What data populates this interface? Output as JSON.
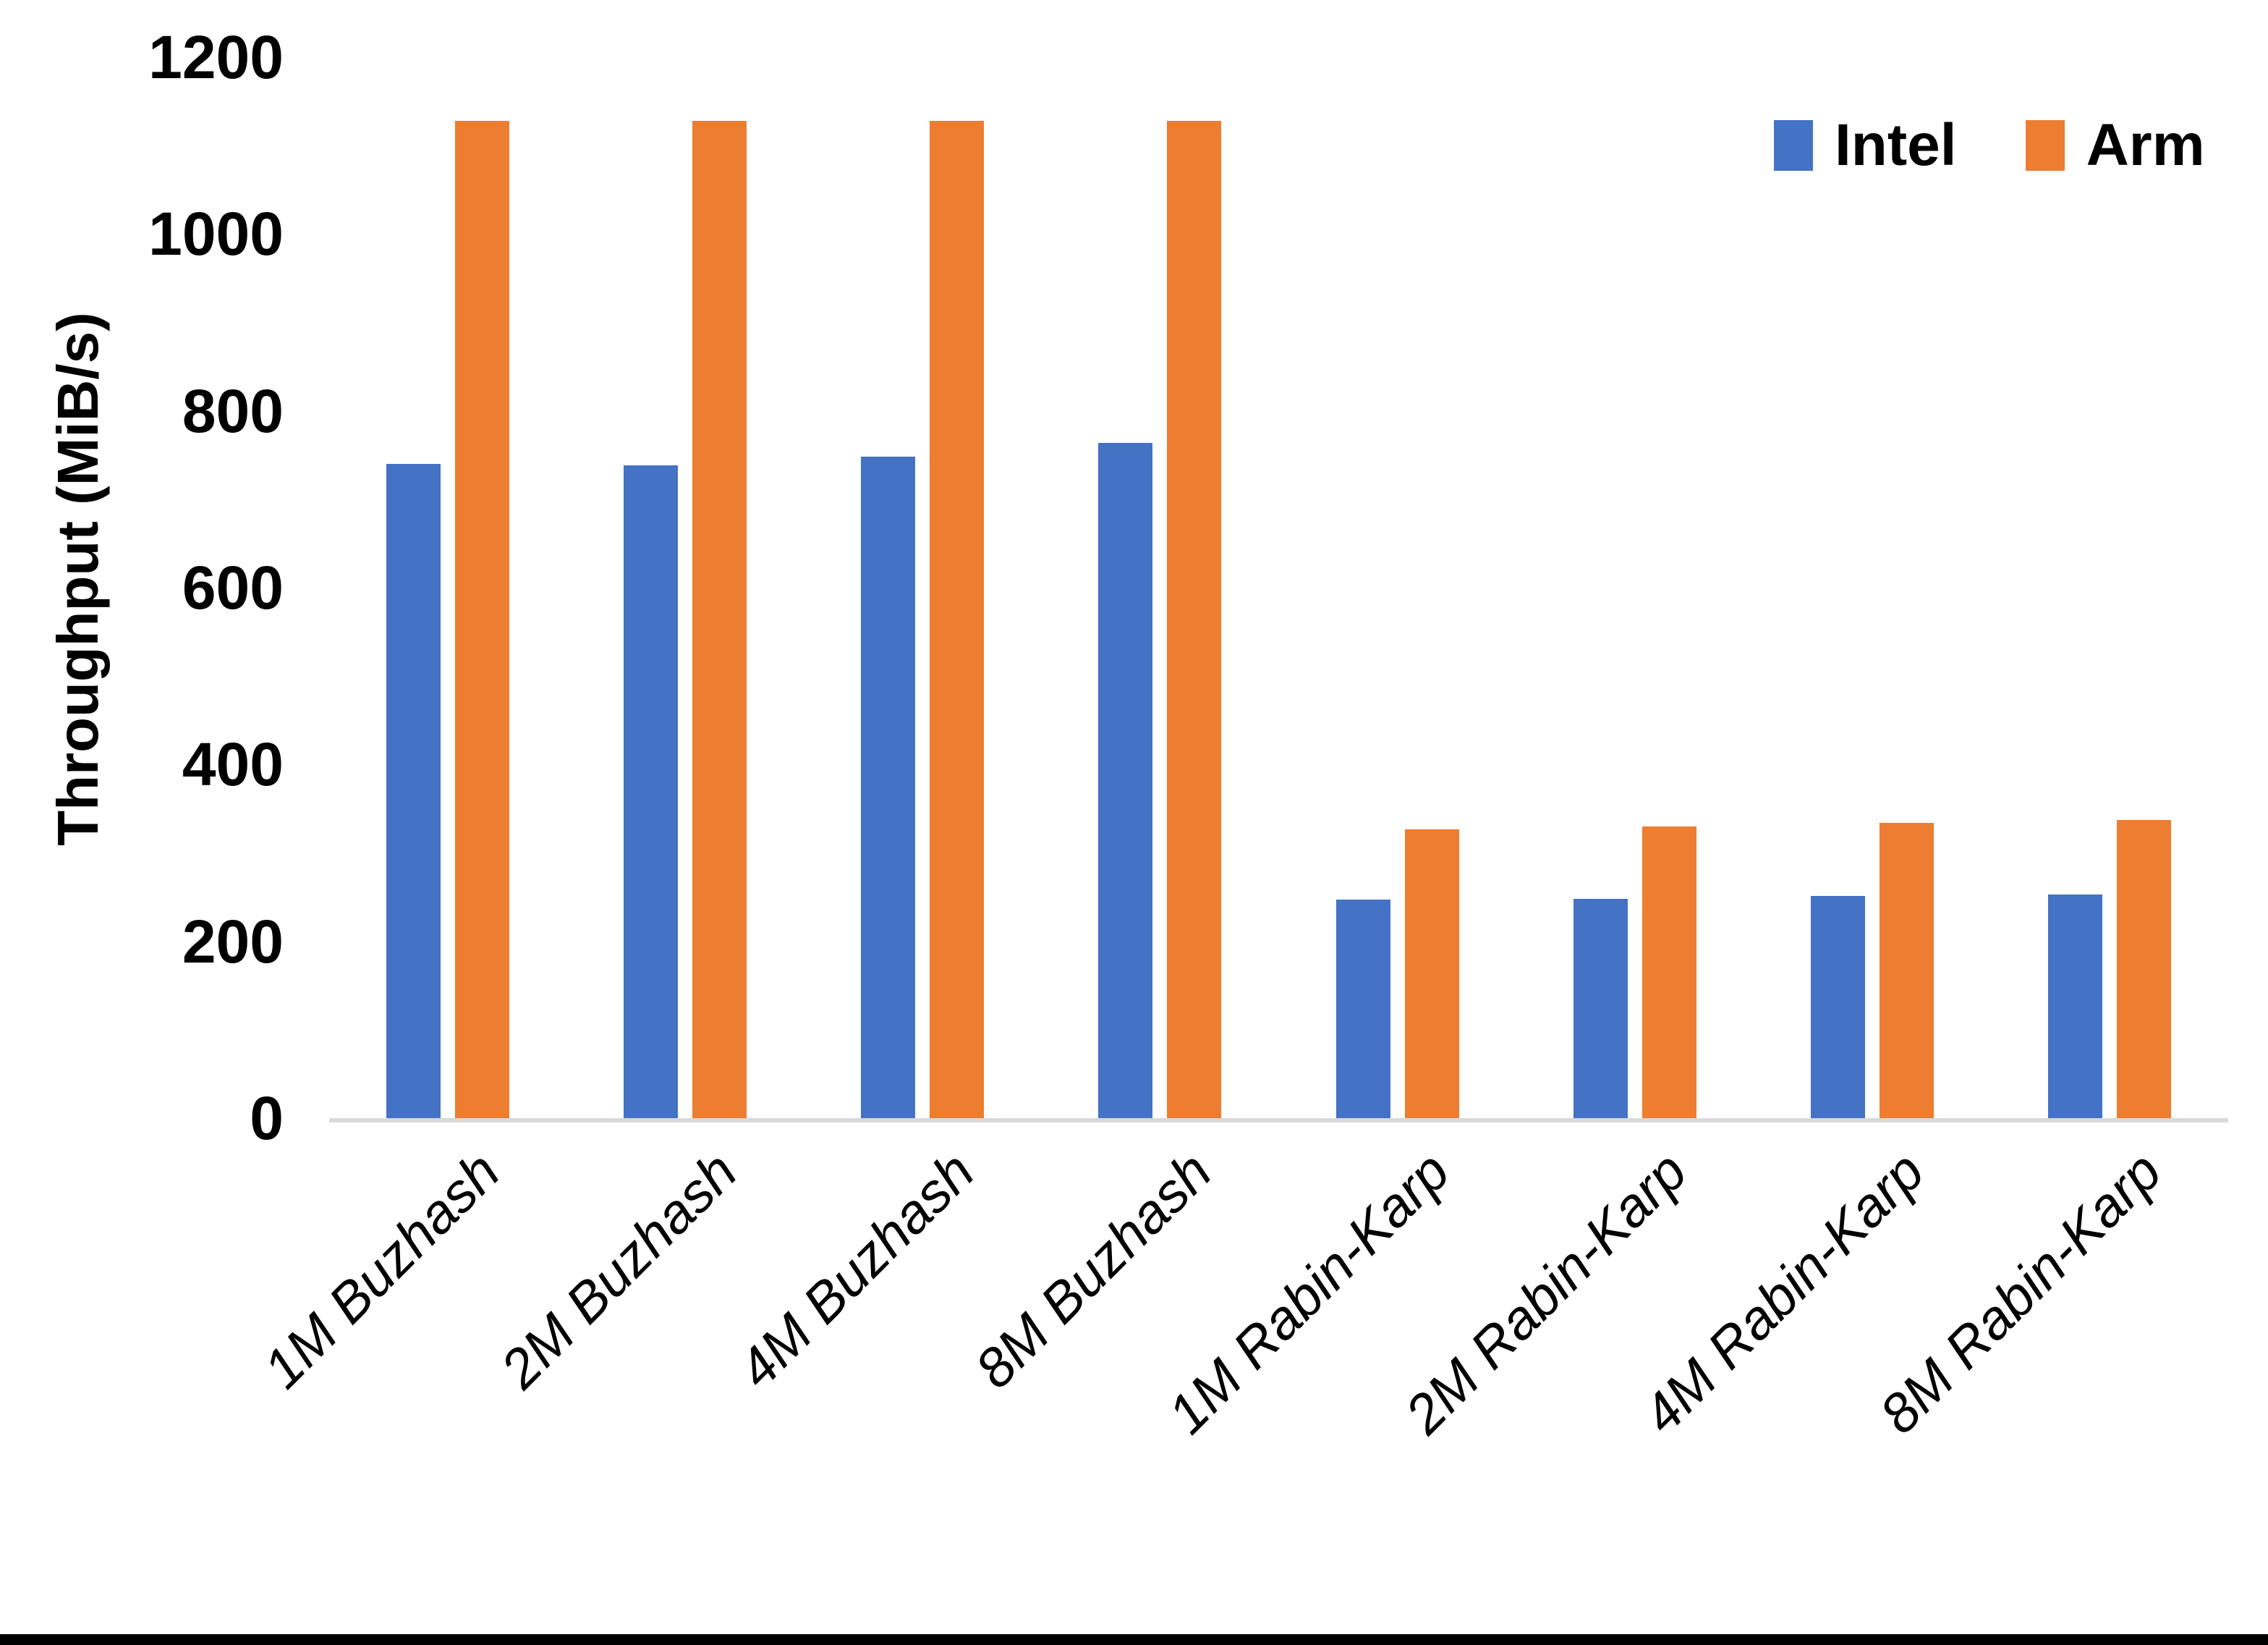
{
  "chart_data": {
    "type": "bar",
    "title": "",
    "xlabel": "",
    "ylabel": "Throughput (MiB/s)",
    "ylim": [
      0,
      1200
    ],
    "yticks": [
      0,
      200,
      400,
      600,
      800,
      1000,
      1200
    ],
    "grid": false,
    "legend_position": "top-right",
    "categories": [
      "1M Buzhash",
      "2M Buzhash",
      "4M Buzhash",
      "8M Buzhash",
      "1M Rabin-Karp",
      "2M Rabin-Karp",
      "4M Rabin-Karp",
      "8M Rabin-Karp"
    ],
    "series": [
      {
        "name": "Intel",
        "color": "#4472C4",
        "values": [
          740,
          738,
          748,
          764,
          247,
          248,
          251,
          253
        ]
      },
      {
        "name": "Arm",
        "color": "#ED7D31",
        "values": [
          1128,
          1128,
          1128,
          1128,
          327,
          330,
          334,
          337
        ]
      }
    ],
    "axis_line_color": "#d9d9d9",
    "background_color": "#ffffff",
    "border_bottom_color": "#000000"
  }
}
